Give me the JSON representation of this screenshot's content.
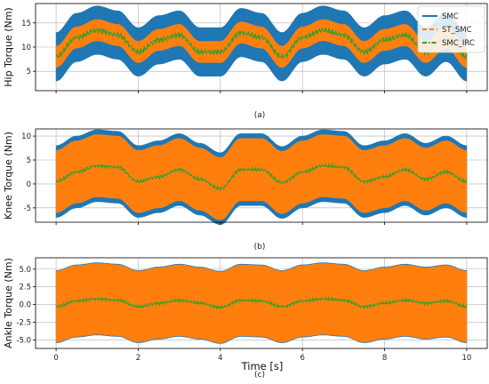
{
  "figure": {
    "xlabel": "Time [s]",
    "legend_position": "top-right",
    "legend_entries": [
      {
        "name": "SMC",
        "color": "#1f77b4",
        "style": "solid"
      },
      {
        "name": "ST_SMC",
        "color": "#ff7f0e",
        "style": "dashed"
      },
      {
        "name": "SMC_IRC",
        "color": "#2ca02c",
        "style": "dashdot"
      }
    ],
    "colors": {
      "SMC": "#1f77b4",
      "ST_SMC": "#ff7f0e",
      "SMC_IRC": "#2ca02c",
      "grid": "#b0b0b0"
    }
  },
  "chart_data": [
    {
      "type": "line",
      "caption": "(a)",
      "ylabel": "Hip Torque (Nm)",
      "xlim": [
        -0.5,
        10.5
      ],
      "ylim": [
        1,
        19
      ],
      "xticks": [
        0,
        2,
        4,
        6,
        8,
        10
      ],
      "yticks": [
        5,
        10,
        15
      ],
      "ytick_labels": [
        "5",
        "10",
        "15"
      ],
      "grid": true,
      "legend": true,
      "series": [
        {
          "name": "SMC",
          "x": [
            0,
            0.5,
            1,
            1.5,
            2,
            2.5,
            3,
            3.5,
            4,
            4.5,
            5,
            5.5,
            6,
            6.5,
            7,
            7.5,
            8,
            8.5,
            9,
            9.5,
            10
          ],
          "center": [
            8,
            12,
            13.5,
            12.5,
            9,
            11.5,
            12.5,
            9,
            9,
            13,
            12,
            8,
            12,
            13.5,
            12.5,
            9,
            11.5,
            12.5,
            9,
            12,
            8
          ],
          "half_width": 5
        },
        {
          "name": "ST_SMC",
          "x": [
            0,
            0.5,
            1,
            1.5,
            2,
            2.5,
            3,
            3.5,
            4,
            4.5,
            5,
            5.5,
            6,
            6.5,
            7,
            7.5,
            8,
            8.5,
            9,
            9.5,
            10
          ],
          "center": [
            8,
            12,
            13.5,
            12.5,
            9,
            11.5,
            12.5,
            9,
            9,
            13,
            12,
            8,
            12,
            13.5,
            12.5,
            9,
            11.5,
            12.5,
            9,
            12,
            8
          ],
          "half_width": 2.2
        },
        {
          "name": "SMC_IRC",
          "x": [
            0,
            0.5,
            1,
            1.5,
            2,
            2.5,
            3,
            3.5,
            4,
            4.5,
            5,
            5.5,
            6,
            6.5,
            7,
            7.5,
            8,
            8.5,
            9,
            9.5,
            10
          ],
          "center": [
            8,
            12,
            13.5,
            12.5,
            9,
            11.5,
            12.5,
            9,
            9,
            13,
            12,
            8,
            12,
            13.5,
            12.5,
            9,
            11.5,
            12.5,
            9,
            12,
            8
          ],
          "half_width": 0.7
        }
      ]
    },
    {
      "type": "line",
      "caption": "(b)",
      "ylabel": "Knee Torque (Nm)",
      "xlim": [
        -0.5,
        10.5
      ],
      "ylim": [
        -8,
        11.5
      ],
      "xticks": [
        0,
        2,
        4,
        6,
        8,
        10
      ],
      "yticks": [
        -5,
        0,
        5,
        10
      ],
      "ytick_labels": [
        "-5",
        "0",
        "5",
        "10"
      ],
      "grid": true,
      "legend": false,
      "series": [
        {
          "name": "SMC",
          "x": [
            0,
            0.5,
            1,
            1.5,
            2,
            2.5,
            3,
            3.5,
            4,
            4.5,
            5,
            5.5,
            6,
            6.5,
            7,
            7.5,
            8,
            8.5,
            9,
            9.5,
            10
          ],
          "center": [
            0.5,
            2.5,
            3.8,
            3.5,
            0.5,
            1.5,
            3,
            1,
            -1,
            3,
            3,
            0.3,
            2.5,
            3.8,
            3.5,
            0.5,
            1.5,
            3,
            1,
            2.5,
            0.5
          ],
          "half_width": 7.5
        },
        {
          "name": "ST_SMC",
          "x": [
            0,
            0.5,
            1,
            1.5,
            2,
            2.5,
            3,
            3.5,
            4,
            4.5,
            5,
            5.5,
            6,
            6.5,
            7,
            7.5,
            8,
            8.5,
            9,
            9.5,
            10
          ],
          "center": [
            0.5,
            2.5,
            3.8,
            3.5,
            0.5,
            1.5,
            3,
            1,
            -1,
            3,
            3,
            0.3,
            2.5,
            3.8,
            3.5,
            0.5,
            1.5,
            3,
            1,
            2.5,
            0.5
          ],
          "half_width": 6.5
        },
        {
          "name": "SMC_IRC",
          "x": [
            0,
            0.5,
            1,
            1.5,
            2,
            2.5,
            3,
            3.5,
            4,
            4.5,
            5,
            5.5,
            6,
            6.5,
            7,
            7.5,
            8,
            8.5,
            9,
            9.5,
            10
          ],
          "center": [
            0.5,
            2.5,
            3.8,
            3.5,
            0.5,
            1.5,
            3,
            1,
            -1,
            3,
            3,
            0.3,
            2.5,
            3.8,
            3.5,
            0.5,
            1.5,
            3,
            1,
            2.5,
            0.5
          ],
          "half_width": 0.4
        }
      ]
    },
    {
      "type": "line",
      "caption": "(c)",
      "ylabel": "Ankle Torque (Nm)",
      "xlim": [
        -0.5,
        10.5
      ],
      "ylim": [
        -6.2,
        6.6
      ],
      "xticks": [
        0,
        2,
        4,
        6,
        8,
        10
      ],
      "xtick_labels": [
        "0",
        "2",
        "4",
        "6",
        "8",
        "10"
      ],
      "yticks": [
        -5.0,
        -2.5,
        0.0,
        2.5,
        5.0
      ],
      "ytick_labels": [
        "-5.0",
        "-2.5",
        "0.0",
        "2.5",
        "5.0"
      ],
      "grid": true,
      "legend": false,
      "series": [
        {
          "name": "SMC",
          "x": [
            0,
            0.5,
            1,
            1.5,
            2,
            2.5,
            3,
            3.5,
            4,
            4.5,
            5,
            5.5,
            6,
            6.5,
            7,
            7.5,
            8,
            8.5,
            9,
            9.5,
            10
          ],
          "center": [
            -0.3,
            0.5,
            0.8,
            0.6,
            -0.3,
            0.2,
            0.6,
            0.2,
            -0.4,
            0.6,
            0.5,
            -0.3,
            0.5,
            0.8,
            0.6,
            -0.3,
            0.2,
            0.6,
            0.2,
            0.5,
            -0.3
          ],
          "half_width": 5.1
        },
        {
          "name": "ST_SMC",
          "x": [
            0,
            0.5,
            1,
            1.5,
            2,
            2.5,
            3,
            3.5,
            4,
            4.5,
            5,
            5.5,
            6,
            6.5,
            7,
            7.5,
            8,
            8.5,
            9,
            9.5,
            10
          ],
          "center": [
            -0.3,
            0.5,
            0.8,
            0.6,
            -0.3,
            0.2,
            0.6,
            0.2,
            -0.4,
            0.6,
            0.5,
            -0.3,
            0.5,
            0.8,
            0.6,
            -0.3,
            0.2,
            0.6,
            0.2,
            0.5,
            -0.3
          ],
          "half_width": 5.0
        },
        {
          "name": "SMC_IRC",
          "x": [
            0,
            0.5,
            1,
            1.5,
            2,
            2.5,
            3,
            3.5,
            4,
            4.5,
            5,
            5.5,
            6,
            6.5,
            7,
            7.5,
            8,
            8.5,
            9,
            9.5,
            10
          ],
          "center": [
            -0.3,
            0.5,
            0.8,
            0.6,
            -0.3,
            0.2,
            0.6,
            0.2,
            -0.4,
            0.6,
            0.5,
            -0.3,
            0.5,
            0.8,
            0.6,
            -0.3,
            0.2,
            0.6,
            0.2,
            0.5,
            -0.3
          ],
          "half_width": 0.25
        }
      ]
    }
  ]
}
